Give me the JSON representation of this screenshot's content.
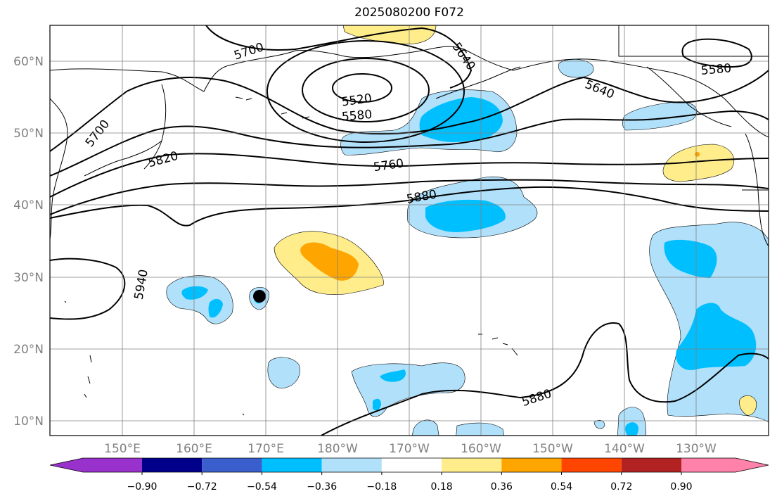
{
  "title": "2025080200 F072",
  "map": {
    "lon_labels": [
      "150°E",
      "160°E",
      "170°E",
      "180°W",
      "170°W",
      "160°W",
      "150°W",
      "140°W",
      "130°W"
    ],
    "lat_labels": [
      "60°N",
      "50°N",
      "40°N",
      "30°N",
      "20°N",
      "10°N"
    ],
    "contour_labels": [
      "5700",
      "5640",
      "5520",
      "5580",
      "5700",
      "5820",
      "5760",
      "5880",
      "5640",
      "5580",
      "5940",
      "5880"
    ],
    "marker": "tropical-cyclone-position"
  },
  "colorbar": {
    "colors": [
      "#9932cc",
      "#00008b",
      "#3a5fcd",
      "#00bfff",
      "#b0e0fa",
      "#ffffff",
      "#ffec8b",
      "#ffa500",
      "#ff4500",
      "#b22222",
      "#ff82ab"
    ],
    "tick_labels": [
      "−0.90",
      "−0.72",
      "−0.54",
      "−0.36",
      "−0.18",
      "0.18",
      "0.36",
      "0.54",
      "0.72",
      "0.90"
    ]
  }
}
